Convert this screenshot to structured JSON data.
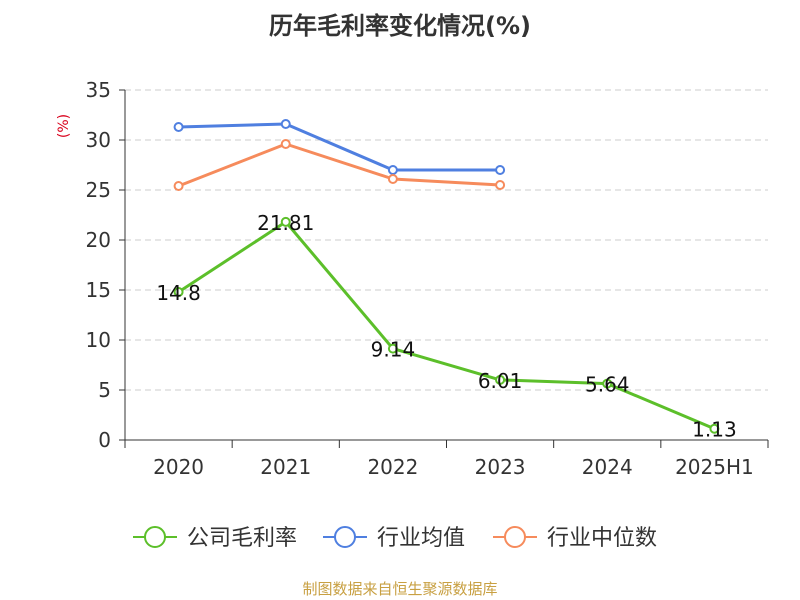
{
  "chart_data": {
    "type": "line",
    "title": "历年毛利率变化情况(%)",
    "ylabel": "(%)",
    "categories": [
      "2020",
      "2021",
      "2022",
      "2023",
      "2024",
      "2025H1"
    ],
    "ylim": [
      0,
      35
    ],
    "yticks": [
      0,
      5,
      10,
      15,
      20,
      25,
      30,
      35
    ],
    "grid": true,
    "legend_position": "bottom",
    "series": [
      {
        "name": "公司毛利率",
        "color": "#5cbf2a",
        "values": [
          14.8,
          21.81,
          9.14,
          6.01,
          5.64,
          1.13
        ],
        "labels": [
          "14.8",
          "21.81",
          "9.14",
          "6.01",
          "5.64",
          "1.13"
        ]
      },
      {
        "name": "行业均值",
        "color": "#4f7fe0",
        "values": [
          31.3,
          31.6,
          27.0,
          27.0,
          null,
          null
        ]
      },
      {
        "name": "行业中位数",
        "color": "#f68b5c",
        "values": [
          25.4,
          29.6,
          26.1,
          25.5,
          null,
          null
        ]
      }
    ],
    "source": "制图数据来自恒生聚源数据库"
  }
}
